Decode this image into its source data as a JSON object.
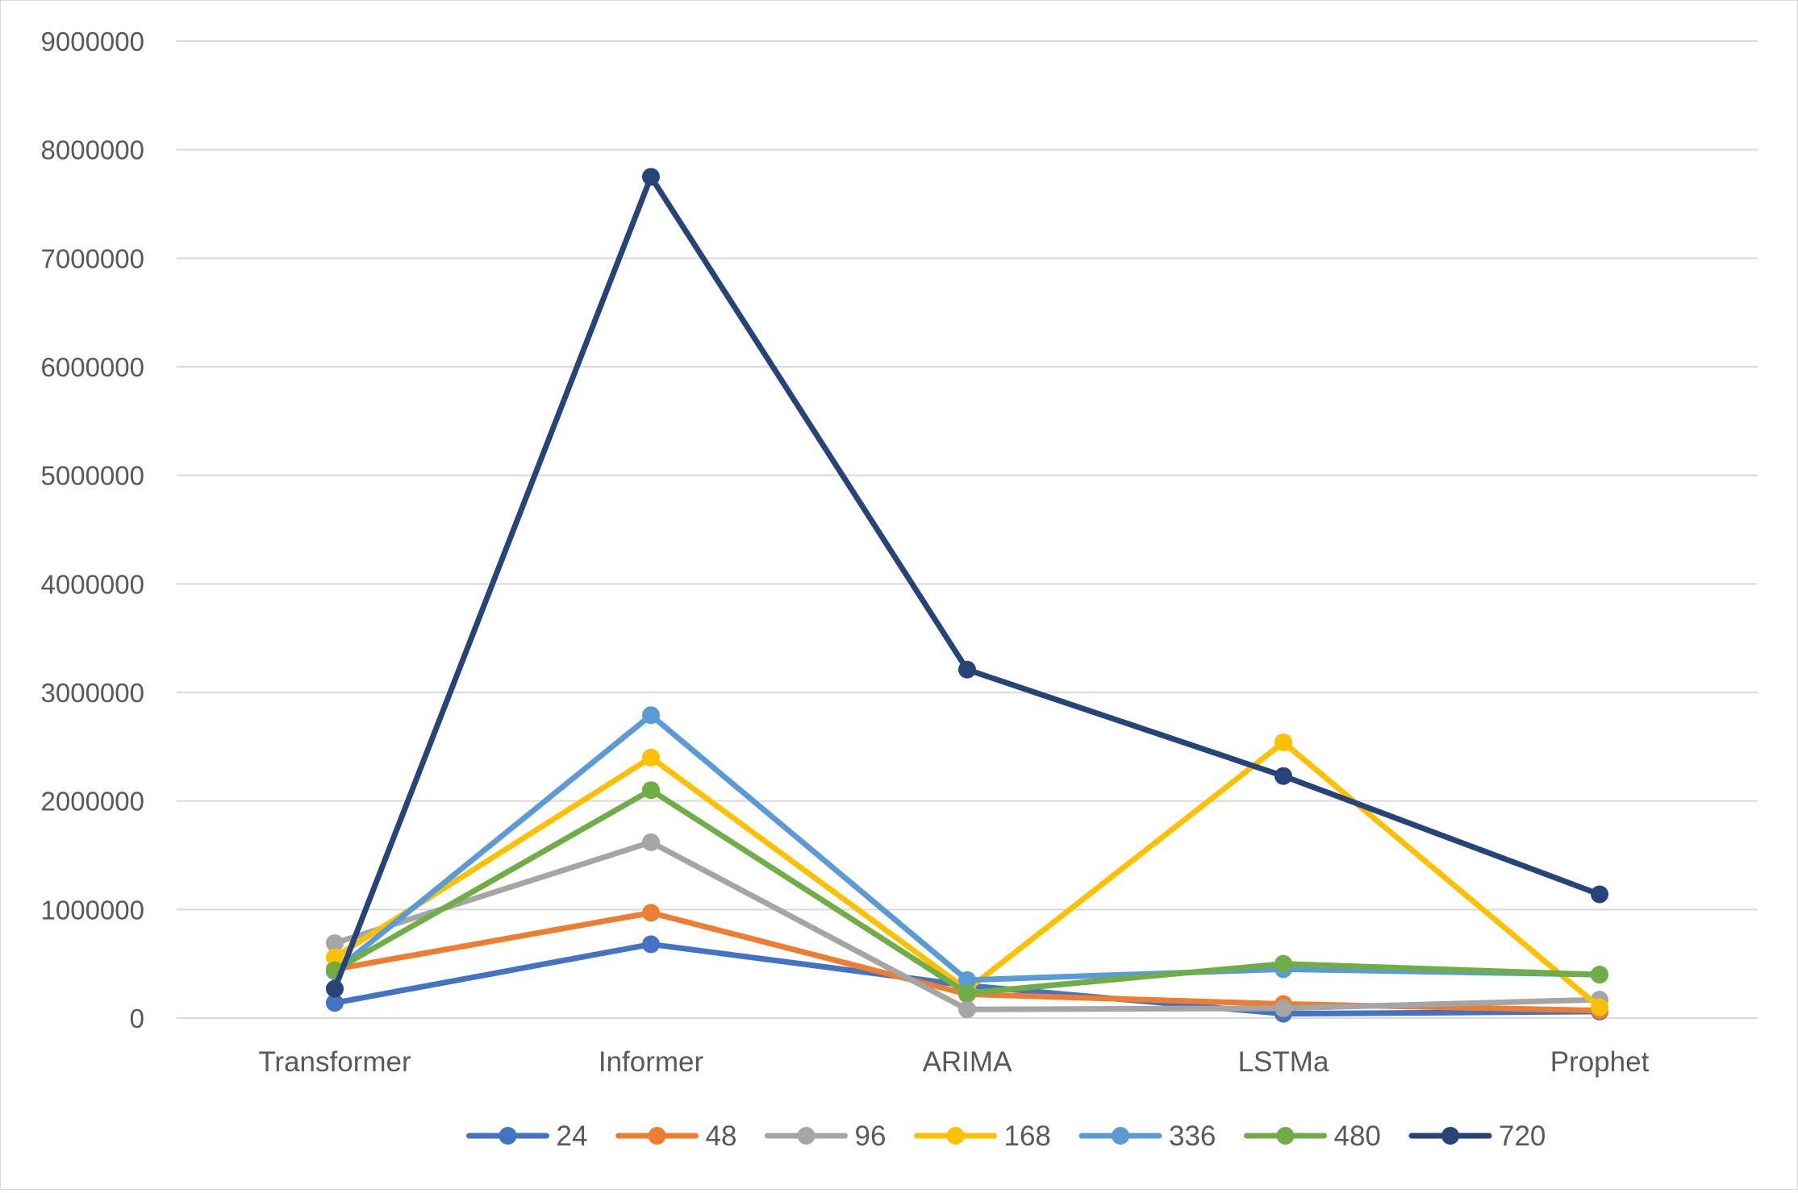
{
  "chart_data": {
    "type": "line",
    "title": "",
    "xlabel": "",
    "ylabel": "",
    "categories": [
      "Transformer",
      "Informer",
      "ARIMA",
      "LSTMa",
      "Prophet"
    ],
    "ylim": [
      0,
      9000000
    ],
    "yticks": [
      "0",
      "1000000",
      "2000000",
      "3000000",
      "4000000",
      "5000000",
      "6000000",
      "7000000",
      "8000000",
      "9000000"
    ],
    "grid": "horizontal",
    "legend_position": "bottom",
    "series": [
      {
        "name": "24",
        "color": "#4472C4",
        "values": [
          140000,
          680000,
          300000,
          40000,
          60000
        ]
      },
      {
        "name": "48",
        "color": "#ED7D31",
        "values": [
          450000,
          970000,
          220000,
          130000,
          70000
        ]
      },
      {
        "name": "96",
        "color": "#A5A5A5",
        "values": [
          690000,
          1620000,
          80000,
          90000,
          170000
        ]
      },
      {
        "name": "168",
        "color": "#FFC000",
        "values": [
          560000,
          2400000,
          260000,
          2540000,
          100000
        ]
      },
      {
        "name": "336",
        "color": "#5B9BD5",
        "values": [
          430000,
          2790000,
          350000,
          450000,
          400000
        ]
      },
      {
        "name": "480",
        "color": "#70AD47",
        "values": [
          440000,
          2100000,
          230000,
          500000,
          400000
        ]
      },
      {
        "name": "720",
        "color": "#264478",
        "values": [
          270000,
          7750000,
          3210000,
          2230000,
          1140000
        ]
      }
    ]
  }
}
